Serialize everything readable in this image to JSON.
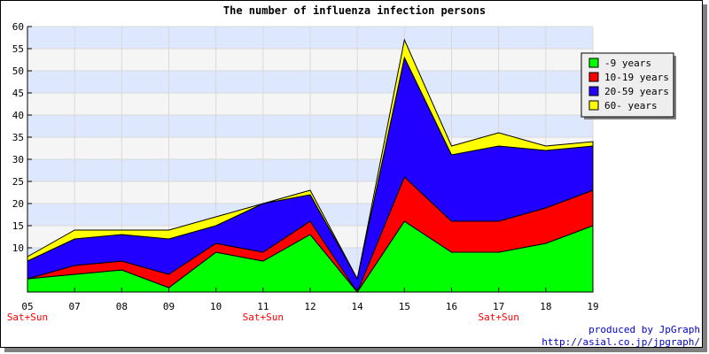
{
  "chart_data": {
    "type": "area",
    "stacked": true,
    "title": "The number of influenza infection persons",
    "xlabel": "",
    "ylabel": "",
    "categories": [
      "05",
      "07",
      "08",
      "09",
      "10",
      "11",
      "12",
      "14",
      "15",
      "16",
      "17",
      "18",
      "19"
    ],
    "weekend_labels": [
      {
        "category": "05",
        "text": "Sat+Sun"
      },
      {
        "category": "11",
        "text": "Sat+Sun"
      },
      {
        "category": "17",
        "text": "Sat+Sun"
      }
    ],
    "ylim": [
      0,
      60
    ],
    "yticks": [
      10,
      15,
      20,
      25,
      30,
      35,
      40,
      45,
      50,
      55,
      60
    ],
    "grid": true,
    "legend_position": "right",
    "series": [
      {
        "name": "-9 years",
        "color": "#00ff00",
        "values": [
          3,
          4,
          5,
          1,
          9,
          7,
          13,
          0,
          16,
          9,
          9,
          11,
          15
        ]
      },
      {
        "name": "10-19 years",
        "color": "#ff0000",
        "values": [
          0,
          2,
          2,
          3,
          2,
          2,
          3,
          0,
          10,
          7,
          7,
          8,
          8
        ]
      },
      {
        "name": "20-59 years",
        "color": "#2200ff",
        "values": [
          4,
          6,
          6,
          8,
          4,
          11,
          6,
          3,
          27,
          15,
          17,
          13,
          10
        ]
      },
      {
        "name": "60- years",
        "color": "#ffff00",
        "values": [
          1,
          2,
          1,
          2,
          2,
          0,
          1,
          0,
          4,
          2,
          3,
          1,
          1
        ]
      }
    ]
  },
  "footer": {
    "credit": "produced by JpGraph",
    "url": "http://asial.co.jp/jpgraph/"
  }
}
